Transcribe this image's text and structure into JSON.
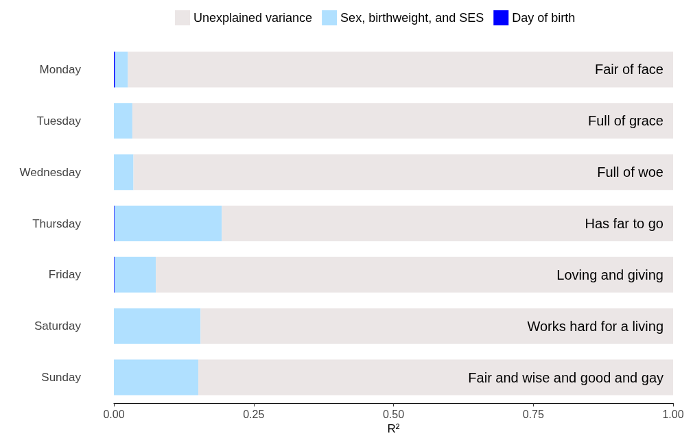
{
  "chart_data": {
    "type": "bar",
    "orientation": "horizontal",
    "stacked": true,
    "xlabel": "R²",
    "categories": [
      "Monday",
      "Tuesday",
      "Wednesday",
      "Thursday",
      "Friday",
      "Saturday",
      "Sunday"
    ],
    "series": [
      {
        "name": "Day of birth",
        "color": "#0000ff",
        "values": [
          0.002,
          0,
          0,
          0.001,
          0.001,
          0,
          0
        ]
      },
      {
        "name": "Sex, birthweight, and SES",
        "color": "#b0e0ff",
        "values": [
          0.023,
          0.033,
          0.035,
          0.192,
          0.074,
          0.155,
          0.151
        ]
      },
      {
        "name": "Unexplained variance",
        "color": "#ebe6e6",
        "values": [
          0.975,
          0.967,
          0.965,
          0.807,
          0.925,
          0.845,
          0.849
        ]
      }
    ],
    "xlim": [
      0,
      1
    ],
    "xticks": [
      {
        "value": 0,
        "label": "0.00"
      },
      {
        "value": 0.25,
        "label": "0.25"
      },
      {
        "value": 0.5,
        "label": "0.50"
      },
      {
        "value": 0.75,
        "label": "0.75"
      },
      {
        "value": 1,
        "label": "1.00"
      }
    ],
    "grid": false,
    "legend": "top",
    "annotations": [
      "Fair of face",
      "Full of grace",
      "Full of woe",
      "Has far to go",
      "Loving and giving",
      "Works hard for a living",
      "Fair and wise and good and gay"
    ]
  }
}
